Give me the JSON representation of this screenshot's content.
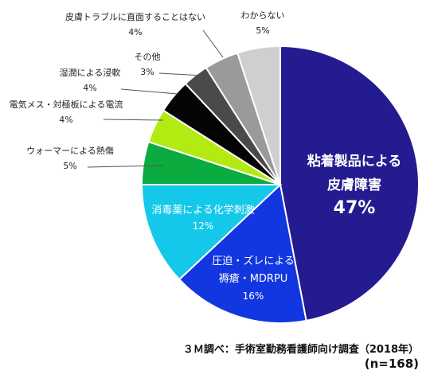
{
  "chart_data": {
    "type": "pie",
    "start_angle_deg": 0,
    "direction": "clockwise",
    "slices": [
      {
        "label_lines": [
          "粘着製品による",
          "皮膚障害"
        ],
        "value": 47,
        "value_text": "47%",
        "color": "#231b8f",
        "label_position": "inside"
      },
      {
        "label_lines": [
          "圧迫・ズレによる",
          "褥瘡・MDRPU"
        ],
        "value": 16,
        "value_text": "16%",
        "color": "#1237e0",
        "label_position": "inside"
      },
      {
        "label_lines": [
          "消毒薬による化学刺激"
        ],
        "value": 12,
        "value_text": "12%",
        "color": "#14c8ea",
        "label_position": "inside"
      },
      {
        "label_lines": [
          "ウォーマーによる熱傷"
        ],
        "value": 5,
        "value_text": "5%",
        "color": "#0bab40",
        "label_position": "outside"
      },
      {
        "label_lines": [
          "電気メス・対極板による電流"
        ],
        "value": 4,
        "value_text": "4%",
        "color": "#b3ea12",
        "label_position": "outside"
      },
      {
        "label_lines": [
          "湿潤による浸軟"
        ],
        "value": 4,
        "value_text": "4%",
        "color": "#050505",
        "label_position": "outside"
      },
      {
        "label_lines": [
          "その他"
        ],
        "value": 3,
        "value_text": "3%",
        "color": "#4a4a4a",
        "label_position": "outside"
      },
      {
        "label_lines": [
          "皮膚トラブルに直面することはない"
        ],
        "value": 4,
        "value_text": "4%",
        "color": "#9a9a9a",
        "label_position": "outside"
      },
      {
        "label_lines": [
          "わからない"
        ],
        "value": 5,
        "value_text": "5%",
        "color": "#cfcfcf",
        "label_position": "outside"
      }
    ]
  },
  "source": {
    "line1": "３Ｍ調べ：手術室勤務看護師向け調査（2018年）",
    "line2": "(n=168)"
  }
}
